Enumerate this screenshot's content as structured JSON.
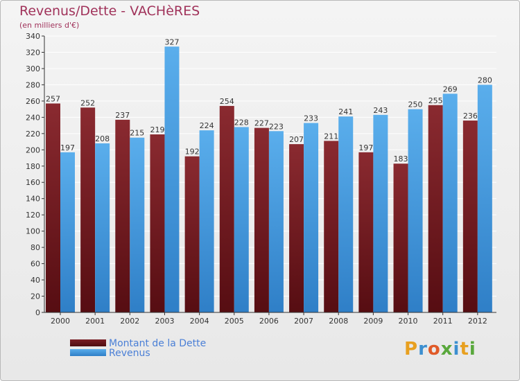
{
  "header": {
    "title": "Revenus/Dette - VACHèRES",
    "subtitle": "(en milliers d'€)"
  },
  "legend": {
    "debt_label": "Montant de la Dette",
    "revenue_label": "Revenus"
  },
  "logo": {
    "text": "Proxiti",
    "letters": [
      "P",
      "r",
      "o",
      "x",
      "i",
      "t",
      "i"
    ],
    "colors": [
      "#e8a020",
      "#3c8fd0",
      "#e05a28",
      "#59a83c",
      "#3c8fd0",
      "#e8a020",
      "#59a83c"
    ]
  },
  "colors": {
    "debt": "#7a1f25",
    "debt_light": "#a83838",
    "debt_dark": "#4e0c10",
    "revenue": "#4aa0e0",
    "revenue_light": "#63b3ef",
    "revenue_dark": "#2e7cc4",
    "grid": "#ffffff",
    "axis": "#333333",
    "label": "#333333"
  },
  "chart_data": {
    "type": "bar",
    "title": "Revenus/Dette - VACHèRES",
    "ylabel": "(en milliers d'€)",
    "xlabel": "",
    "categories": [
      "2000",
      "2001",
      "2002",
      "2003",
      "2004",
      "2005",
      "2006",
      "2007",
      "2008",
      "2009",
      "2010",
      "2011",
      "2012"
    ],
    "series": [
      {
        "name": "Montant de la Dette",
        "values": [
          257,
          252,
          237,
          219,
          192,
          254,
          227,
          207,
          211,
          197,
          183,
          255,
          236
        ]
      },
      {
        "name": "Revenus",
        "values": [
          197,
          208,
          215,
          327,
          224,
          228,
          223,
          233,
          241,
          243,
          250,
          269,
          280
        ]
      }
    ],
    "ylim": [
      0,
      340
    ],
    "ytick_step": 20,
    "grid": true,
    "legend_position": "bottom-left"
  }
}
